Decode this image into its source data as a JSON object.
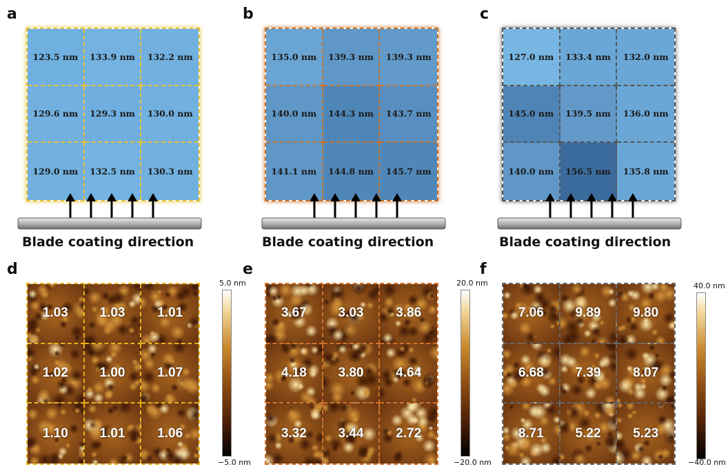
{
  "caption": "Blade coating direction",
  "thickness_panels": [
    {
      "label": "a",
      "color": "#e8c23a",
      "cells": [
        "123.5 nm",
        "133.9 nm",
        "132.2 nm",
        "129.6 nm",
        "129.3 nm",
        "130.0 nm",
        "129.0 nm",
        "132.5 nm",
        "130.3 nm"
      ],
      "fills": [
        "#6fb0e0",
        "#73b2e1",
        "#71b0df",
        "#71b0df",
        "#6faedf",
        "#71b0df",
        "#71b0df",
        "#73b2e1",
        "#71b0df"
      ]
    },
    {
      "label": "b",
      "color": "#c8742e",
      "cells": [
        "135.0 nm",
        "139.3 nm",
        "139.3 nm",
        "140.0 nm",
        "144.3 nm",
        "143.7 nm",
        "141.1 nm",
        "144.8 nm",
        "145.7 nm"
      ],
      "fills": [
        "#6aa4d2",
        "#5f97c7",
        "#629ac9",
        "#5f97c7",
        "#4f86b8",
        "#588fc0",
        "#5f97c7",
        "#5087b9",
        "#5087b9"
      ]
    },
    {
      "label": "c",
      "color": "#555555",
      "cells": [
        "127.0 nm",
        "133.4 nm",
        "132.0 nm",
        "145.0 nm",
        "139.5 nm",
        "136.0 nm",
        "140.0 nm",
        "156.5 nm",
        "135.8 nm"
      ],
      "fills": [
        "#77b6e3",
        "#6aa7d6",
        "#6aa7d6",
        "#4f85b6",
        "#6299c9",
        "#6aa7d6",
        "#5f97c7",
        "#3b6b9c",
        "#6aa7d6"
      ]
    }
  ],
  "afm_panels": [
    {
      "label": "d",
      "color": "#e8b21a",
      "cells": [
        "1.03",
        "1.03",
        "1.01",
        "1.02",
        "1.00",
        "1.07",
        "1.10",
        "1.01",
        "1.06"
      ],
      "scale_max": "5.0 nm",
      "scale_min": "−5.0 nm"
    },
    {
      "label": "e",
      "color": "#d2722a",
      "cells": [
        "3.67",
        "3.03",
        "3.86",
        "4.18",
        "3.80",
        "4.64",
        "3.32",
        "3.44",
        "2.72"
      ],
      "scale_max": "20.0 nm",
      "scale_min": "−20.0 nm"
    },
    {
      "label": "f",
      "color": "#666666",
      "cells": [
        "7.06",
        "9.89",
        "9.80",
        "6.68",
        "7.39",
        "8.07",
        "8.71",
        "5.22",
        "5.23"
      ],
      "scale_max": "40.0 nm",
      "scale_min": "−40.0 nm"
    }
  ]
}
